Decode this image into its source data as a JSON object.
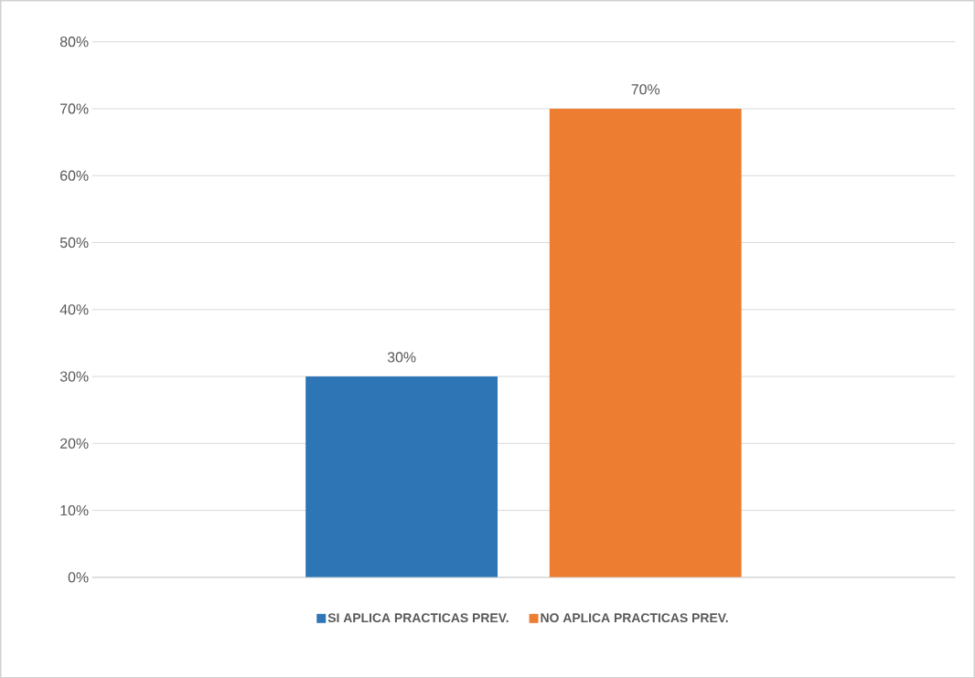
{
  "chart_data": {
    "type": "bar",
    "categories": [
      null
    ],
    "series": [
      {
        "name": "SI APLICA PRACTICAS PREV.",
        "color": "#2e75b6",
        "values": [
          30
        ],
        "value_labels": [
          "30%"
        ]
      },
      {
        "name": "NO APLICA PRACTICAS PREV.",
        "color": "#ed7d31",
        "values": [
          70
        ],
        "value_labels": [
          "70%"
        ]
      }
    ],
    "ylim": [
      0,
      80
    ],
    "yticks": [
      {
        "value": 0,
        "label": "0%"
      },
      {
        "value": 10,
        "label": "10%"
      },
      {
        "value": 20,
        "label": "20%"
      },
      {
        "value": 30,
        "label": "30%"
      },
      {
        "value": 40,
        "label": "40%"
      },
      {
        "value": 50,
        "label": "50%"
      },
      {
        "value": 60,
        "label": "60%"
      },
      {
        "value": 70,
        "label": "70%"
      },
      {
        "value": 80,
        "label": "80%"
      }
    ],
    "grid": "y",
    "legend": "bottom"
  }
}
